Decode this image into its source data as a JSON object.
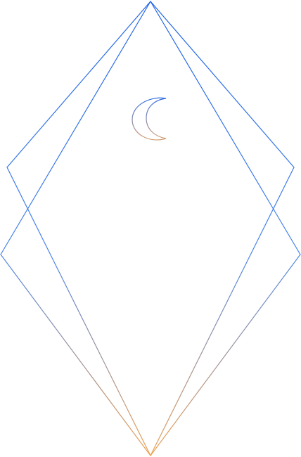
{
  "artwork": {
    "description_icons": [
      "diamond-outline-icon",
      "crescent-moon-icon"
    ],
    "colors": {
      "gradient_top": "#1f63e6",
      "gradient_mid": "#4a86e8",
      "gradient_bottom": "#f0a050",
      "moon_top": "#2a6be6",
      "moon_bottom": "#d9a070"
    }
  }
}
